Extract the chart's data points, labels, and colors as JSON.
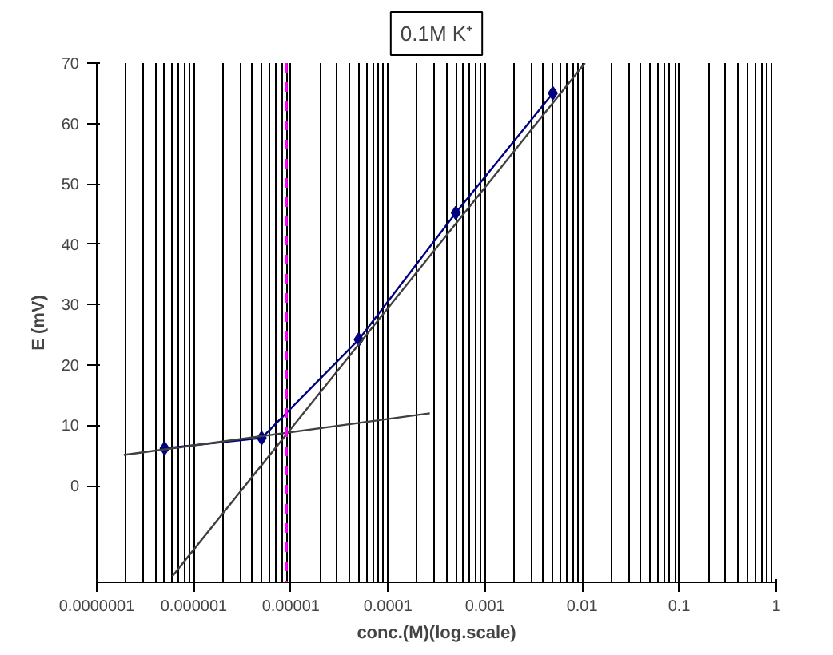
{
  "chart_data": {
    "type": "line",
    "title": "0.1M K⁺",
    "xlabel": "conc.(M)(log.scale)",
    "ylabel": "E (mV)",
    "log": "x",
    "xlim": [
      1e-07,
      1
    ],
    "ylim": [
      -16,
      70
    ],
    "xticks": [
      {
        "value": 1e-07,
        "label": "0.0000001"
      },
      {
        "value": 1e-06,
        "label": "0.000001"
      },
      {
        "value": 1e-05,
        "label": "0.00001"
      },
      {
        "value": 0.0001,
        "label": "0.0001"
      },
      {
        "value": 0.001,
        "label": "0.001"
      },
      {
        "value": 0.01,
        "label": "0.01"
      },
      {
        "value": 0.1,
        "label": "0.1"
      },
      {
        "value": 1,
        "label": "1"
      }
    ],
    "yticks": [
      0,
      10,
      20,
      30,
      40,
      50,
      60,
      70
    ],
    "grid": "x",
    "x": [
      5e-07,
      5e-06,
      5e-05,
      0.0005,
      0.005
    ],
    "series": [
      {
        "color": "#000080",
        "values": [
          6.2,
          7.9,
          24.2,
          45.2,
          65.0
        ],
        "marker": "diamond"
      },
      {
        "color": "#404040",
        "x": [
          6e-07,
          0.0107
        ],
        "values": [
          -15,
          70
        ],
        "marker": "none"
      },
      {
        "color": "#404040",
        "x": [
          1.9e-07,
          0.00027
        ],
        "values": [
          5.1,
          12
        ],
        "marker": "none"
      }
    ],
    "ref_lines": [
      {
        "axis": "x",
        "value": 9e-06,
        "label": null,
        "color": "#ff00ff",
        "line_style": "dashed"
      }
    ]
  }
}
